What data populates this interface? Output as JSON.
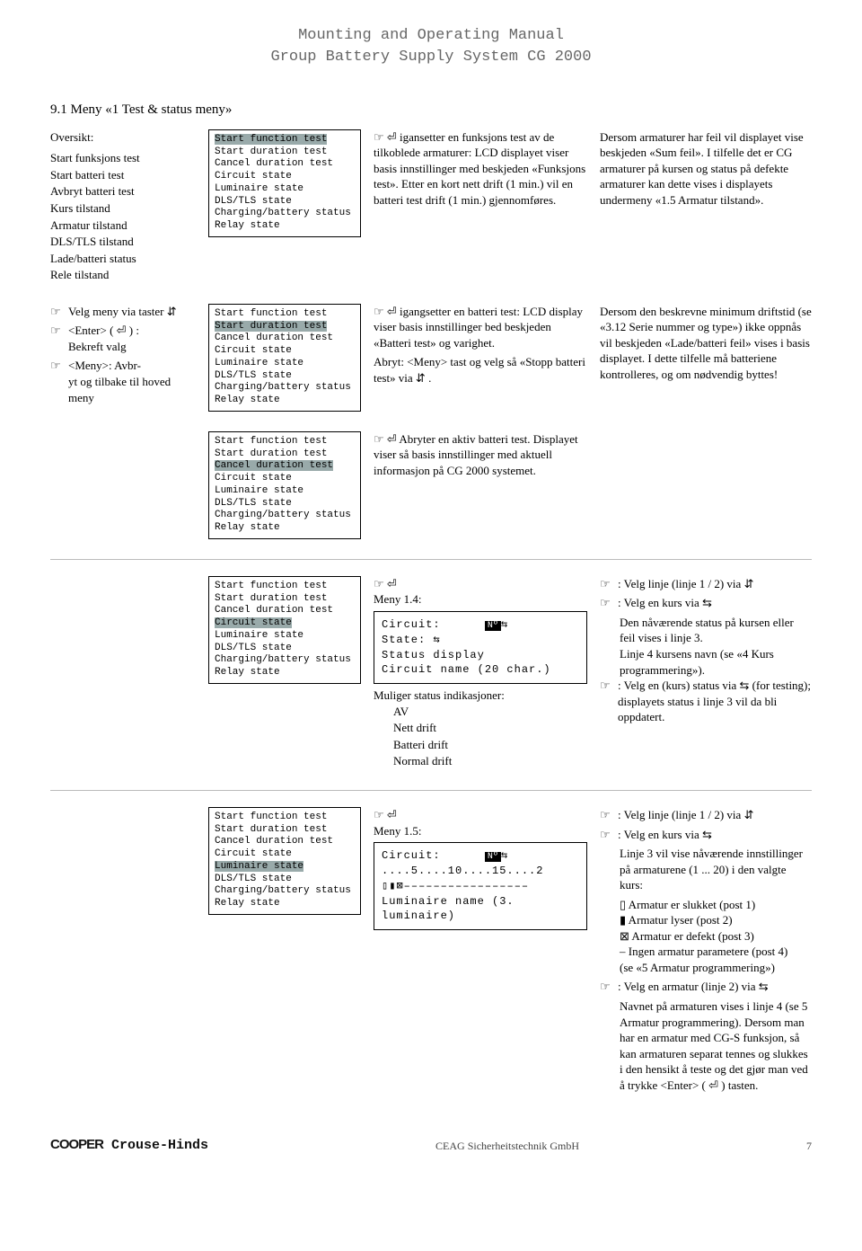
{
  "header": {
    "line1": "Mounting and Operating Manual",
    "line2": "Group Battery Supply System CG 2000"
  },
  "sectionTitle": "9.1 Meny «1 Test & status meny»",
  "overview": {
    "title": "Oversikt:",
    "items": [
      "Start funksjons test",
      "Start batteri test",
      "Avbryt batteri test",
      "Kurs tilstand",
      "Armatur tilstand",
      "DLS/TLS tilstand",
      "Lade/batteri status",
      "Rele tilstand"
    ]
  },
  "navHints": {
    "i1": "Velg meny via taster  ⇵",
    "i2a": "<Enter> ( ⏎ ) :",
    "i2b": "Bekreft valg",
    "i3a": "<Meny>: Avbr-",
    "i3b": "yt og tilbake til hoved meny"
  },
  "menuLines": [
    "Start function test",
    "Start duration test",
    "Cancel duration test",
    "Circuit state",
    "Luminaire state",
    "DLS/TLS state",
    "Charging/battery status",
    "Relay state"
  ],
  "highlightIndex": {
    "r1": 0,
    "r2": 1,
    "r3": 2,
    "r4": 3,
    "r5": 4
  },
  "descr": {
    "r1": "igansetter en funksjons test av de tilkoblede armaturer: LCD displayet viser basis innstillinger med beskjeden «Funksjons test». Etter en kort nett drift (1 min.) vil en batteri test drift (1 min.) gjennomføres.",
    "r2a": "igangsetter en batteri test: LCD display viser basis innstillinger bed beskjeden «Batteri test» og varighet.",
    "r2b": "Abryt: <Meny> tast og velg så «Stopp batteri test» via   ⇵ .",
    "r3": "Abryter en aktiv batteri test. Displayet viser så basis innstillinger med aktuell informasjon på CG 2000 systemet.",
    "r4meny": "Meny 1.4:",
    "r4statusTitle": "Muliger status indikasjoner:",
    "r4states": [
      "AV",
      "Nett drift",
      "Batteri drift",
      "Normal drift"
    ],
    "r5meny": "Meny 1.5:"
  },
  "right": {
    "r1": "Dersom armaturer har feil vil displayet vise beskjeden «Sum feil». I tilfelle det er CG armaturer på kursen og status på defekte armaturer kan dette vises i displayets undermeny «1.5 Armatur tilstand».",
    "r2": "Dersom den beskrevne minimum driftstid (se «3.12 Serie nummer og type») ikke oppnås vil beskjeden «Lade/batteri feil» vises i basis displayet. I dette tilfelle må batteriene kontrolleres, og om nødvendig byttes!",
    "r4_1": ": Velg linje (linje 1 / 2) via  ⇵",
    "r4_2": ": Velg en kurs via  ⇆",
    "r4_3": "Den nåværende status på kursen eller feil vises i linje 3.",
    "r4_4": "Linje 4 kursens navn (se «4 Kurs programmering»).",
    "r4_5": ": Velg en (kurs) status via  ⇆  (for testing); displayets status i linje 3 vil da bli oppdatert.",
    "r5_1": ": Velg linje (linje 1 / 2) via  ⇵",
    "r5_2": ": Velg en kurs via  ⇆",
    "r5_3": "Linje 3 vil vise nåværende innstillinger på armaturene (1 ... 20) i den valgte kurs:",
    "r5_li": [
      "▯  Armatur er slukket (post 1)",
      "▮  Armatur lyser (post 2)",
      "⊠  Armatur er defekt (post 3)",
      "–  Ingen armatur parametere (post 4)",
      "   (se «5 Armatur programmering»)"
    ],
    "r5_4": ": Velg en armatur (linje 2) via  ⇆",
    "r5_5": "Navnet på armaturen vises i linje 4 (se 5 Armatur programmering). Dersom man har en armatur med CG-S funksjon, så kan armaturen separat tennes og slukkes i den hensikt å teste og det gjør man ved å trykke <Enter>  ( ⏎ ) tasten."
  },
  "lcd14": {
    "l1a": "Circuit:",
    "l1b": "Nº⇆",
    "l2": "State:           ⇆",
    "l3": "Status display",
    "l4": "Circuit name (20 char.)"
  },
  "lcd15": {
    "l1a": "Circuit:",
    "l1b": "Nº⇆",
    "l2": "....5....10....15....2",
    "l3": "▯▮⊠–––––––––––––––––",
    "l4": "Luminaire name (3. luminaire)"
  },
  "footer": {
    "brand": "COOPER Crouse-Hinds",
    "company": "CEAG Sicherheitstechnik GmbH",
    "page": "7"
  }
}
